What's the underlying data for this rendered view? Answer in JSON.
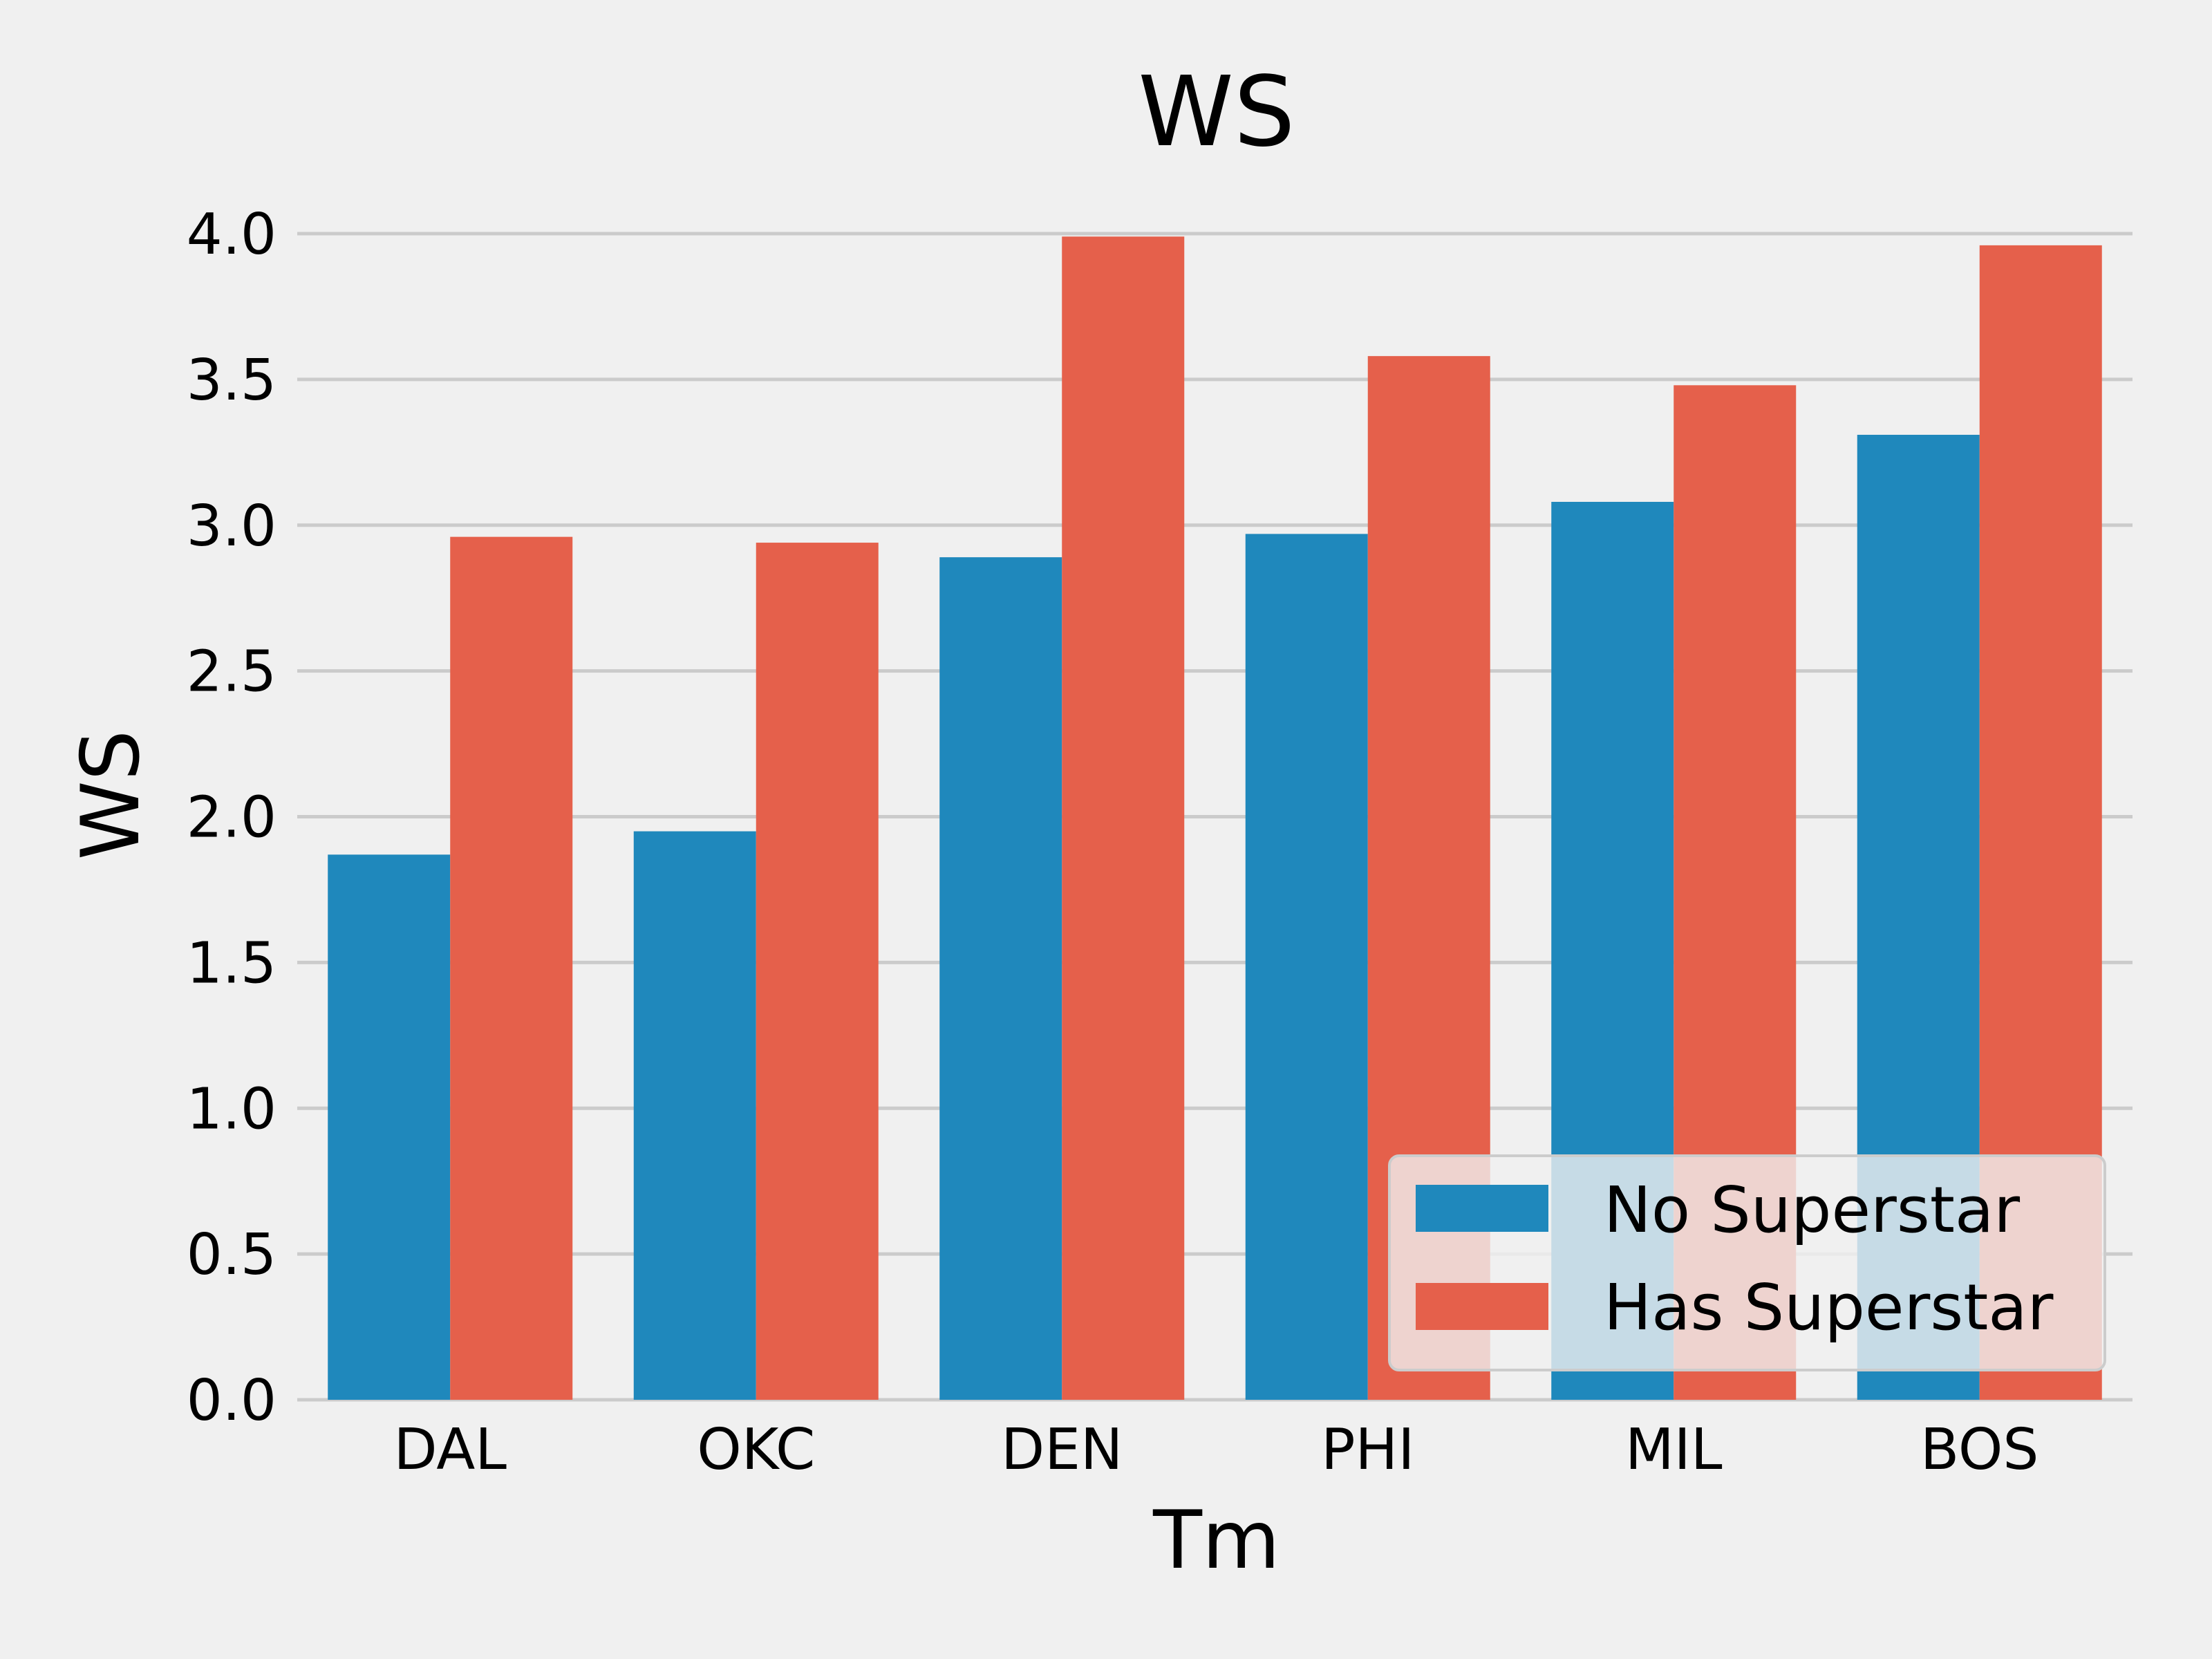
{
  "chart_data": {
    "type": "bar",
    "title": "WS",
    "xlabel": "Tm",
    "ylabel": "WS",
    "categories": [
      "DAL",
      "OKC",
      "DEN",
      "PHI",
      "MIL",
      "BOS"
    ],
    "series": [
      {
        "name": "No Superstar",
        "color": "#1f88bc",
        "values": [
          1.87,
          1.95,
          2.89,
          2.97,
          3.08,
          3.31
        ]
      },
      {
        "name": "Has Superstar",
        "color": "#e5604b",
        "values": [
          2.96,
          2.94,
          3.99,
          3.58,
          3.48,
          3.96
        ]
      }
    ],
    "ylim": [
      0,
      4.0
    ],
    "yticks": [
      "0.0",
      "0.5",
      "1.0",
      "1.5",
      "2.0",
      "2.5",
      "3.0",
      "3.5",
      "4.0"
    ],
    "grid": "horizontal",
    "legend_position": "lower-right"
  }
}
